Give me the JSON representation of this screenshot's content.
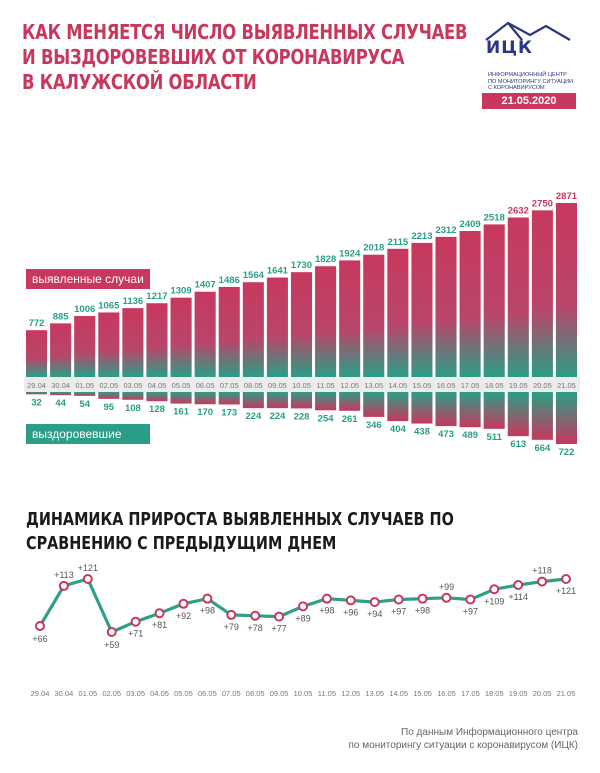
{
  "header": {
    "title_lines": [
      "Как меняется число выявленных случаев",
      "и выздоровевших от коронавируса",
      "в Калужской области"
    ]
  },
  "logo": {
    "abbr": "ИЦК",
    "subtitle_lines": [
      "Информационный центр",
      "по мониторингу ситуации",
      "с коронавирусом"
    ],
    "date": "21.05.2020"
  },
  "colors": {
    "brand_red": "#c8385e",
    "brand_teal": "#2a9e86",
    "logo_navy": "#2a3680",
    "line_teal": "#2f9f8c",
    "marker_red": "#c8385e"
  },
  "chart_data": [
    {
      "type": "bar",
      "categories": [
        "29.04",
        "30.04",
        "01.05",
        "02.05",
        "03.05",
        "04.05",
        "05.05",
        "06.05",
        "07.05",
        "08.05",
        "09.05",
        "10.05",
        "11.05",
        "12.05",
        "13.05",
        "14.05",
        "15.05",
        "16.05",
        "17.05",
        "18.05",
        "19.05",
        "20.05",
        "21.05"
      ],
      "series": [
        {
          "name": "выявленные случаи",
          "values": [
            772,
            885,
            1006,
            1065,
            1136,
            1217,
            1309,
            1407,
            1486,
            1564,
            1641,
            1730,
            1828,
            1924,
            2018,
            2115,
            2213,
            2312,
            2409,
            2518,
            2632,
            2750,
            2871
          ]
        },
        {
          "name": "выздоровевшие",
          "values": [
            32,
            44,
            54,
            95,
            108,
            128,
            161,
            170,
            173,
            224,
            224,
            228,
            254,
            261,
            346,
            404,
            438,
            473,
            489,
            511,
            613,
            664,
            722
          ]
        }
      ],
      "title": "",
      "ylim": [
        0,
        2871
      ],
      "legend": [
        "выявленные случаи",
        "выздоровевшие"
      ]
    },
    {
      "type": "line",
      "title": "Динамика прироста выявленных случаев по сравнению с предыдущим днем",
      "x": [
        "29.04",
        "30.04",
        "01.05",
        "02.05",
        "03.05",
        "04.05",
        "05.05",
        "06.05",
        "07.05",
        "08.05",
        "09.05",
        "10.05",
        "11.05",
        "12.05",
        "13.05",
        "14.05",
        "15.05",
        "16.05",
        "17.05",
        "18.05",
        "19.05",
        "20.05",
        "21.05"
      ],
      "values": [
        66,
        113,
        121,
        59,
        71,
        81,
        92,
        98,
        79,
        78,
        77,
        89,
        98,
        96,
        94,
        97,
        98,
        99,
        97,
        109,
        114,
        118,
        121
      ],
      "labels": [
        "+66",
        "+113",
        "+121",
        "+59",
        "+71",
        "+81",
        "+92",
        "+98",
        "+79",
        "+78",
        "+77",
        "+89",
        "+98",
        "+96",
        "+94",
        "+97",
        "+98",
        "+99",
        "+97",
        "+109",
        "+114",
        "+118",
        "+121"
      ],
      "ylim": [
        59,
        121
      ]
    }
  ],
  "source_lines": [
    "По данным Информационного центра",
    "по мониторингу ситуации с коронавирусом (ИЦК)"
  ]
}
